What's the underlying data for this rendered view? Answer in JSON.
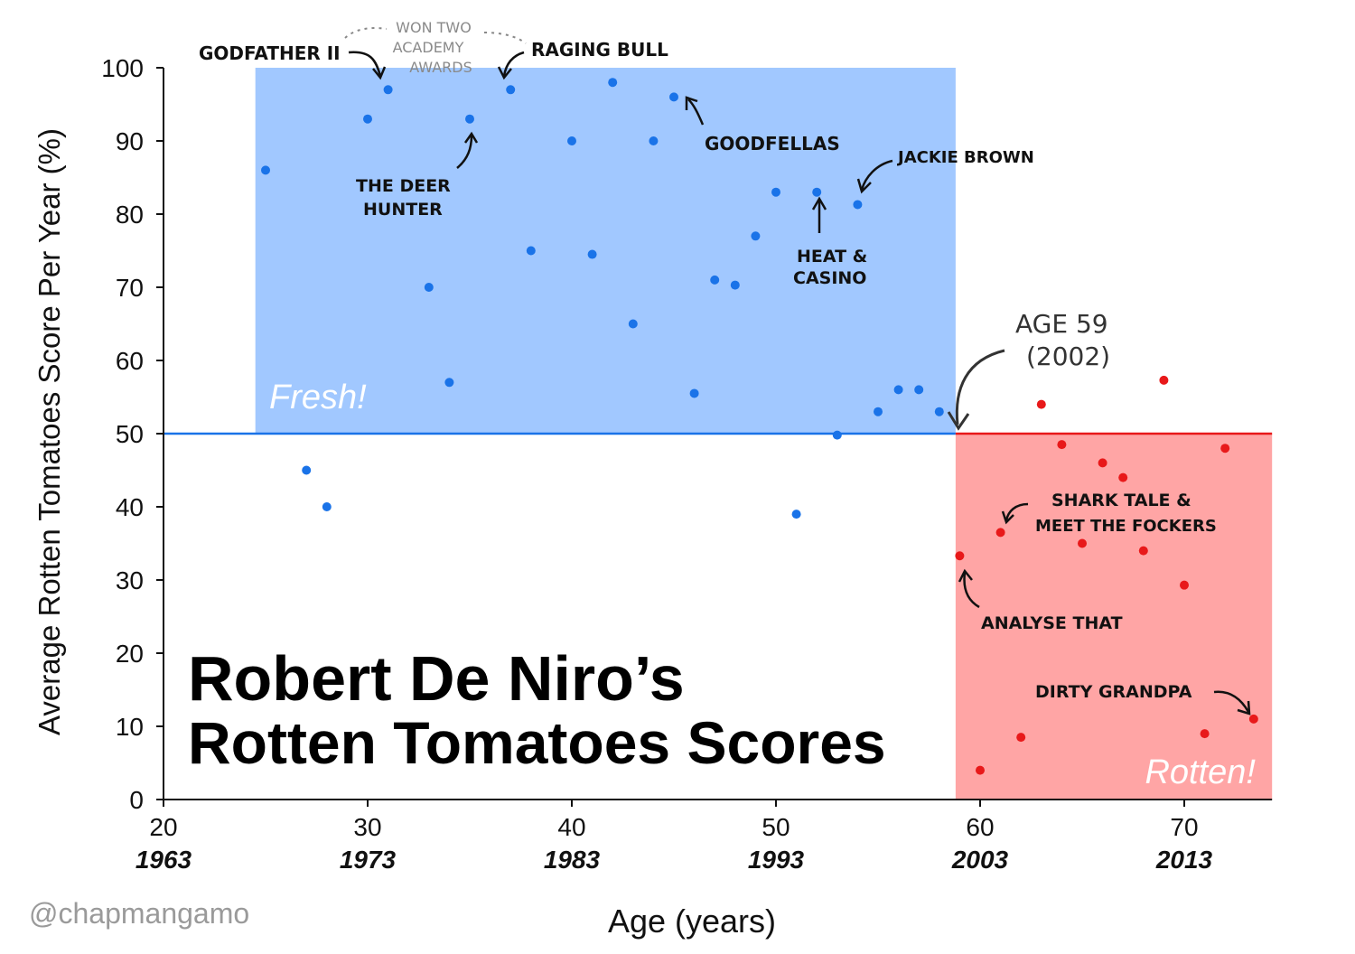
{
  "chart_data": {
    "type": "scatter",
    "title_line1": "Robert De Niro’s",
    "title_line2": "Rotten Tomatoes Scores",
    "xlabel": "Age (years)",
    "ylabel": "Average Rotten Tomatoes Score Per Year (%)",
    "xlim": [
      20,
      74
    ],
    "ylim": [
      0,
      100
    ],
    "x_ticks": [
      {
        "age": "20",
        "year": "1963"
      },
      {
        "age": "30",
        "year": "1973"
      },
      {
        "age": "40",
        "year": "1983"
      },
      {
        "age": "50",
        "year": "1993"
      },
      {
        "age": "60",
        "year": "2003"
      },
      {
        "age": "70",
        "year": "2013"
      }
    ],
    "y_ticks": [
      "0",
      "10",
      "20",
      "30",
      "40",
      "50",
      "60",
      "70",
      "80",
      "90",
      "100"
    ],
    "threshold": 50,
    "regions": {
      "fresh": {
        "label": "Fresh!",
        "x_range": [
          24.5,
          58.8
        ],
        "y_range": [
          50,
          100
        ],
        "color": "#a1c8ff"
      },
      "rotten": {
        "label": "Rotten!",
        "x_range": [
          58.8,
          74.3
        ],
        "y_range": [
          0,
          50
        ],
        "color": "#ffa5a5"
      }
    },
    "series": [
      {
        "color": "#1a73e8",
        "points": [
          [
            25,
            86
          ],
          [
            27,
            45
          ],
          [
            28,
            40
          ],
          [
            30,
            93
          ],
          [
            31,
            97
          ],
          [
            33,
            70
          ],
          [
            34,
            57
          ],
          [
            35,
            93
          ],
          [
            37,
            97
          ],
          [
            38,
            75
          ],
          [
            40,
            90
          ],
          [
            41,
            74.5
          ],
          [
            42,
            98
          ],
          [
            43,
            65
          ],
          [
            44,
            90
          ],
          [
            45,
            96
          ],
          [
            46,
            55.5
          ],
          [
            47,
            71
          ],
          [
            48,
            70.3
          ],
          [
            49,
            77
          ],
          [
            50,
            83
          ],
          [
            51,
            39
          ],
          [
            52,
            83
          ],
          [
            53,
            49.8
          ],
          [
            54,
            81.3
          ],
          [
            55,
            53
          ],
          [
            56,
            56
          ],
          [
            57,
            56
          ],
          [
            58,
            53
          ]
        ]
      },
      {
        "color": "#e8191a",
        "points": [
          [
            59,
            33.3
          ],
          [
            60,
            4
          ],
          [
            61,
            36.5
          ],
          [
            62,
            8.5
          ],
          [
            63,
            54
          ],
          [
            64,
            48.5
          ],
          [
            65,
            35
          ],
          [
            66,
            46
          ],
          [
            67,
            44
          ],
          [
            68,
            34
          ],
          [
            69,
            57.3
          ],
          [
            70,
            29.3
          ],
          [
            71,
            9
          ],
          [
            72,
            48
          ],
          [
            73.4,
            11
          ]
        ]
      }
    ],
    "annotations": [
      {
        "id": "godfather",
        "text": "GODFATHER II",
        "x": 31,
        "y": 97
      },
      {
        "id": "raging-bull",
        "text": "RAGING BULL",
        "x": 37,
        "y": 97
      },
      {
        "id": "academy",
        "lines": [
          "WON TWO",
          "ACADEMY",
          "AWARDS"
        ]
      },
      {
        "id": "deer-hunter",
        "lines": [
          "THE DEER",
          "HUNTER"
        ],
        "x": 35,
        "y": 93
      },
      {
        "id": "goodfellas",
        "text": "GOODFELLAS",
        "x": 45,
        "y": 96
      },
      {
        "id": "jackie-brown",
        "text": "JACKIE BROWN",
        "x": 54,
        "y": 81.3
      },
      {
        "id": "heat-casino",
        "lines": [
          "HEAT &",
          "CASINO"
        ],
        "x": 52,
        "y": 83
      },
      {
        "id": "age59",
        "lines": [
          "AGE 59",
          "(2002)"
        ],
        "x": 58.8,
        "y": 50
      },
      {
        "id": "shark-tale",
        "lines": [
          "SHARK TALE &",
          "MEET THE FOCKERS"
        ],
        "x": 61,
        "y": 36.5
      },
      {
        "id": "analyse-that",
        "text": "ANALYSE THAT",
        "x": 59,
        "y": 33.3
      },
      {
        "id": "dirty-grandpa",
        "text": "DIRTY GRANDPA",
        "x": 73.4,
        "y": 11
      }
    ]
  },
  "credit": "@chapmangamo"
}
